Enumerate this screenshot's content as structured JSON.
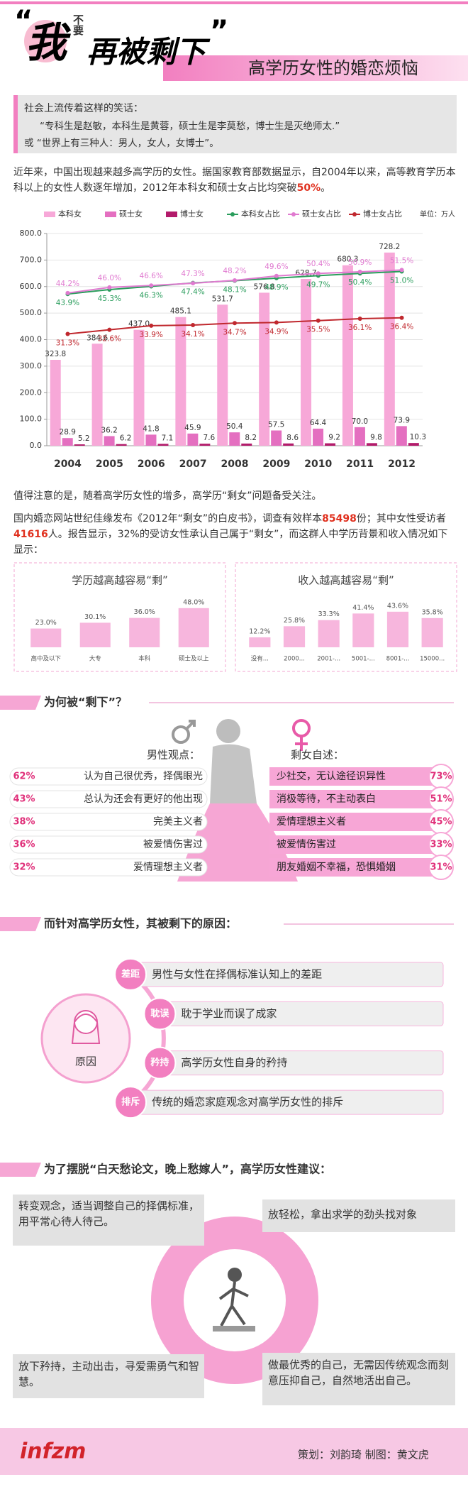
{
  "header": {
    "title": [
      "“",
      "我",
      "不要",
      "再被剩下",
      "”"
    ],
    "subtitle": "高学历女性的婚恋烦恼"
  },
  "intro": {
    "lead": "社会上流传着这样的笑话：",
    "jokes": [
      "“专科生是赵敏，本科生是黄蓉，硕士生是李莫愁，博士生是灭绝师太.”",
      "或  “世界上有三种人：男人，女人，女博士”。"
    ]
  },
  "paragraph": [
    {
      "text": "近年来，中国出现越来越多高学历的女性。据国家教育部数据显示，自2004年以来，高等教育学历本科以上的女性人数逐年增加，2012年本科女和硕士女占比均突破"
    },
    {
      "text": "50%",
      "color": "#e0301e"
    },
    {
      "text": "。"
    }
  ],
  "chart_data": [
    {
      "type": "bar",
      "unit": "单位：万人",
      "categories": [
        "2004",
        "2005",
        "2006",
        "2007",
        "2008",
        "2009",
        "2010",
        "2011",
        "2012"
      ],
      "ylim": [
        0,
        800
      ],
      "yticks": [
        {
          "value": 0,
          "label": "0.0"
        },
        {
          "value": 100,
          "label": "100.0"
        },
        {
          "value": 200,
          "label": "200.0"
        },
        {
          "value": 300,
          "label": "300.0"
        },
        {
          "value": 400,
          "label": "400.0"
        },
        {
          "value": 500,
          "label": "500.0"
        },
        {
          "value": 600,
          "label": "600.0"
        },
        {
          "value": 700,
          "label": "700.0"
        },
        {
          "value": 800,
          "label": "800.0"
        }
      ],
      "y2lim": [
        -4,
        63
      ],
      "grid": true,
      "series": [
        {
          "name": "本科女",
          "color": "#f7a8d8",
          "values": [
            323.8,
            384.6,
            437.0,
            485.1,
            531.7,
            576.8,
            628.7,
            680.3,
            728.2
          ],
          "value_labels": [
            "323.8",
            "384.6",
            "437.0",
            "485.1",
            "531.7",
            "576.8",
            "628.7",
            "680.3",
            "728.2"
          ]
        },
        {
          "name": "硕士女",
          "color": "#e46fc0",
          "values": [
            28.9,
            36.2,
            41.8,
            45.9,
            50.4,
            57.5,
            64.4,
            70.0,
            73.9
          ],
          "value_labels": [
            "28.9",
            "36.2",
            "41.8",
            "45.9",
            "50.4",
            "57.5",
            "64.4",
            "70.0",
            "73.9"
          ]
        },
        {
          "name": "博士女",
          "color": "#b31b6b",
          "values": [
            5.2,
            6.2,
            7.1,
            7.6,
            8.2,
            8.6,
            9.2,
            9.8,
            10.3
          ],
          "value_labels": [
            "5.2",
            "6.2",
            "7.1",
            "7.6",
            "8.2",
            "8.6",
            "9.2",
            "9.8",
            "10.3"
          ]
        },
        {
          "name": "本科女占比",
          "type": "line",
          "axis": "y2",
          "color": "#2a9d5c",
          "values": [
            43.9,
            45.3,
            46.3,
            47.4,
            48.1,
            48.9,
            49.7,
            50.4,
            51.0
          ],
          "value_labels": [
            "43.9%",
            "45.3%",
            "46.3%",
            "47.4%",
            "48.1%",
            "48.9%",
            "49.7%",
            "50.4%",
            "51.0%"
          ]
        },
        {
          "name": "硕士女占比",
          "type": "line",
          "axis": "y2",
          "color": "#e07ad0",
          "values": [
            44.2,
            46.0,
            46.6,
            47.3,
            48.2,
            49.6,
            50.4,
            50.9,
            51.5
          ],
          "value_labels": [
            "44.2%",
            "46.0%",
            "46.6%",
            "47.3%",
            "48.2%",
            "49.6%",
            "50.4%",
            "50.9%",
            "51.5%"
          ]
        },
        {
          "name": "博士女占比",
          "type": "line",
          "axis": "y2",
          "color": "#c0282e",
          "values": [
            31.3,
            32.6,
            33.9,
            34.1,
            34.7,
            34.9,
            35.5,
            36.1,
            36.4
          ],
          "value_labels": [
            "31.3%",
            "32.6%",
            "33.9%",
            "34.1%",
            "34.7%",
            "34.9%",
            "35.5%",
            "36.1%",
            "36.4%"
          ]
        }
      ]
    },
    {
      "type": "bar",
      "title": "学历越高越容易“剩”",
      "color": "#f7b6dd",
      "categories": [
        "高中及以下",
        "大专",
        "本科",
        "硕士及以上"
      ],
      "values": [
        23.0,
        30.1,
        36.0,
        48.0
      ],
      "value_labels": [
        "23.0%",
        "30.1%",
        "36.0%",
        "48.0%"
      ]
    },
    {
      "type": "bar",
      "title": "收入越高越容易“剩”",
      "color": "#f7b6dd",
      "categories": [
        "没有...",
        "2000...",
        "2001-...",
        "5001-...",
        "8001-...",
        "15000..."
      ],
      "values": [
        12.2,
        25.8,
        33.3,
        41.4,
        43.6,
        35.8
      ],
      "value_labels": [
        "12.2%",
        "25.8%",
        "33.3%",
        "41.4%",
        "43.6%",
        "35.8%"
      ]
    }
  ],
  "notes": {
    "lead": "值得注意的是，随着高学历女性的增多，高学历“剩女”问题备受关注。",
    "report": [
      {
        "text": "国内婚恋网站世纪佳缘发布《2012年“剩女”的白皮书》，调查有效样本"
      },
      {
        "text": "85498",
        "color": "#e0301e"
      },
      {
        "text": "份；其中女性受访者"
      },
      {
        "text": "41616",
        "color": "#e0301e"
      },
      {
        "text": "人。报告显示，32%的受访女性承认自己属于“剩女”，而这群人中学历背景和收入情况如下显示："
      }
    ]
  },
  "why": {
    "title": "为何被“剩下”？",
    "male": {
      "heading": "男性观点：",
      "items": [
        {
          "percent": "62%",
          "text": "认为自己很优秀，择偶眼光"
        },
        {
          "percent": "43%",
          "text": "总认为还会有更好的他出现"
        },
        {
          "percent": "38%",
          "text": "完美主义者"
        },
        {
          "percent": "36%",
          "text": "被爱情伤害过"
        },
        {
          "percent": "32%",
          "text": "爱情理想主义者"
        }
      ]
    },
    "female": {
      "heading": "剩女自述：",
      "items": [
        {
          "percent": "73%",
          "text": "少社交，无认途径识异性"
        },
        {
          "percent": "51%",
          "text": "消极等待，不主动表白"
        },
        {
          "percent": "45%",
          "text": "爱情理想主义者"
        },
        {
          "percent": "33%",
          "text": "被爱情伤害过"
        },
        {
          "percent": "31%",
          "text": "朋友婚姻不幸福，恐惧婚姻"
        }
      ]
    }
  },
  "reasons": {
    "title": "而针对高学历女性，其被剩下的原因：",
    "center": "原因",
    "items": [
      {
        "tag": "差距",
        "text": "男性与女性在择偶标准认知上的差距"
      },
      {
        "tag": "耽误",
        "text": "耽于学业而误了成家"
      },
      {
        "tag": "矜持",
        "text": "高学历女性自身的矜持"
      },
      {
        "tag": "排斥",
        "text": "传统的婚恋家庭观念对高学历女性的排斥"
      }
    ]
  },
  "advice": {
    "title": "为了摆脱“白天愁论文，晚上愁嫁人”，高学历女性建议：",
    "items": [
      "转变观念，适当调整自己的择偶标准，用平常心待人待己。",
      "放轻松，拿出求学的劲头找对象",
      "放下矜持，主动出击，寻爱需勇气和智慧。",
      "做最优秀的自己，无需因传统观念而刻意压抑自己，自然地活出自己。"
    ]
  },
  "footer": {
    "logo": "infzm",
    "credits": "策划：刘韵琦    制图：黄文虎"
  }
}
